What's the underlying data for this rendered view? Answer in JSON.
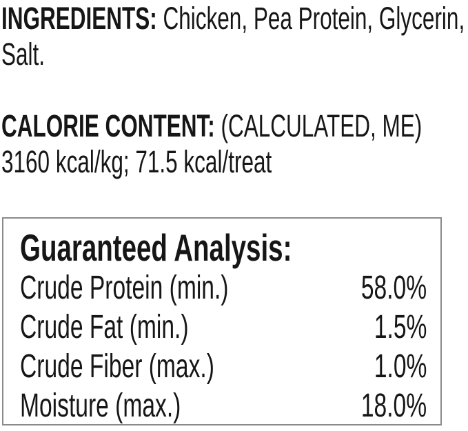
{
  "page": {
    "background_color": "#ffffff",
    "text_color": "#161616",
    "box_border_color": "#8a8a8a"
  },
  "ingredients_section": {
    "label": "INGREDIENTS:",
    "text_line1": " Chicken, Pea Protein, Glycerin,",
    "text_line2": "Salt."
  },
  "calorie_section": {
    "label": "CALORIE CONTENT:",
    "text_line1": " (CALCULATED, ME)",
    "text_line2": "3160 kcal/kg; 71.5 kcal/treat"
  },
  "guaranteed_analysis": {
    "heading": "Guaranteed Analysis:",
    "rows": [
      {
        "label": "Crude Protein (min.)",
        "value": "58.0%"
      },
      {
        "label": "Crude Fat (min.)",
        "value": "1.5%"
      },
      {
        "label": "Crude Fiber (max.)",
        "value": "1.0%"
      },
      {
        "label": "Moisture (max.)",
        "value": "18.0%"
      }
    ]
  }
}
